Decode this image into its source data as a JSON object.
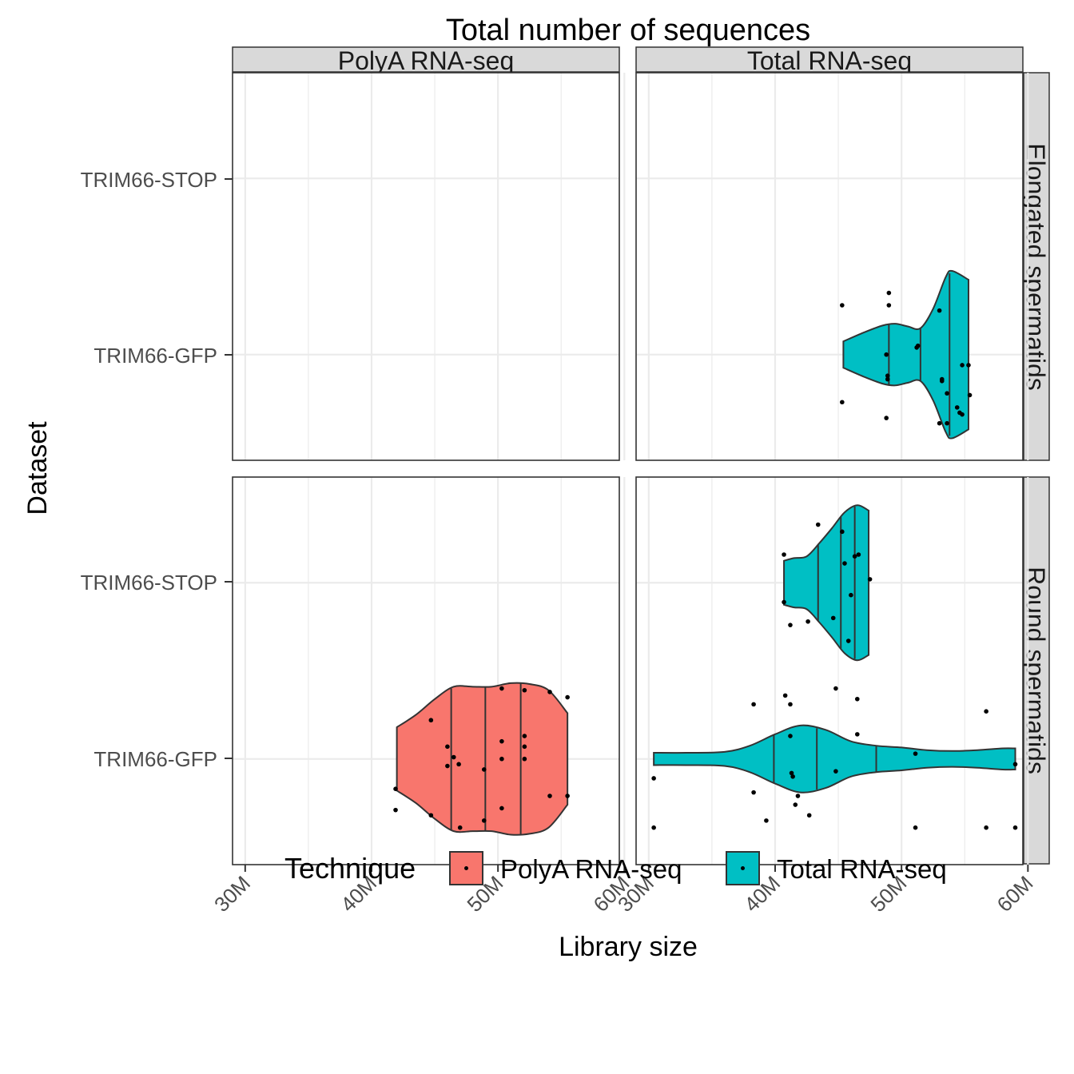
{
  "chart_data": {
    "type": "violin",
    "title": "Total number of sequences",
    "xlabel": "Library size",
    "ylabel": "Dataset",
    "x_ticks": [
      30,
      40,
      50,
      60
    ],
    "x_tick_labels": [
      "30M",
      "40M",
      "50M",
      "60M"
    ],
    "xlim": [
      29,
      59.6
    ],
    "y_categories": [
      "TRIM66-GFP",
      "TRIM66-STOP"
    ],
    "col_facets": [
      "PolyA RNA-seq",
      "Total RNA-seq"
    ],
    "row_facets": [
      "Elongated spermatids",
      "Round spermatids"
    ],
    "legend": {
      "title": "Technique",
      "position": "bottom",
      "entries": [
        {
          "label": "PolyA RNA-seq",
          "color": "#F8766D"
        },
        {
          "label": "Total RNA-seq",
          "color": "#00BFC4"
        }
      ]
    },
    "grid": true,
    "panels": [
      {
        "col": "Total RNA-seq",
        "row": "Elongated spermatids",
        "category": "TRIM66-GFP",
        "technique": "Total RNA-seq",
        "color": "#00BFC4",
        "violin_y": [
          45.4,
          47.0,
          48.5,
          49.5,
          50.5,
          51.5,
          52.5,
          53.5,
          54.0,
          55.3
        ],
        "violin_width": [
          0.15,
          0.25,
          0.33,
          0.35,
          0.32,
          0.3,
          0.52,
          0.88,
          0.95,
          0.85
        ],
        "quantiles": [
          49.0,
          51.5,
          53.8
        ],
        "points": [
          [
            45.3,
            0.28
          ],
          [
            49.0,
            0.35
          ],
          [
            49.0,
            0.28
          ],
          [
            45.3,
            -0.27
          ],
          [
            48.8,
            -0.36
          ],
          [
            48.8,
            0.0
          ],
          [
            48.9,
            -0.12
          ],
          [
            48.9,
            -0.14
          ],
          [
            51.2,
            0.04
          ],
          [
            51.3,
            0.05
          ],
          [
            53.0,
            0.25
          ],
          [
            53.2,
            -0.14
          ],
          [
            53.2,
            -0.15
          ],
          [
            53.6,
            -0.22
          ],
          [
            54.4,
            -0.3
          ],
          [
            54.6,
            -0.33
          ],
          [
            54.8,
            -0.34
          ],
          [
            54.8,
            -0.06
          ],
          [
            55.3,
            -0.06
          ],
          [
            55.4,
            -0.23
          ],
          [
            53.0,
            -0.39
          ],
          [
            53.6,
            -0.39
          ]
        ]
      },
      {
        "col": "PolyA RNA-seq",
        "row": "Round spermatids",
        "category": "TRIM66-GFP",
        "technique": "PolyA RNA-seq",
        "color": "#F8766D",
        "violin_y": [
          42.0,
          43.5,
          45.0,
          46.5,
          48.0,
          49.5,
          51.0,
          52.5,
          54.0,
          55.5
        ],
        "violin_width": [
          0.36,
          0.5,
          0.68,
          0.82,
          0.82,
          0.82,
          0.86,
          0.85,
          0.78,
          0.52
        ],
        "quantiles": [
          46.3,
          49.0,
          51.8
        ],
        "points": [
          [
            41.9,
            -0.17
          ],
          [
            41.9,
            -0.29
          ],
          [
            44.7,
            0.22
          ],
          [
            44.7,
            -0.32
          ],
          [
            46.0,
            0.07
          ],
          [
            46.0,
            -0.04
          ],
          [
            46.5,
            0.01
          ],
          [
            46.9,
            -0.03
          ],
          [
            47.0,
            -0.39
          ],
          [
            48.9,
            -0.06
          ],
          [
            48.9,
            -0.35
          ],
          [
            50.3,
            0.4
          ],
          [
            50.3,
            0.1
          ],
          [
            50.3,
            0.0
          ],
          [
            50.3,
            -0.28
          ],
          [
            52.1,
            0.39
          ],
          [
            52.1,
            0.13
          ],
          [
            52.1,
            0.07
          ],
          [
            52.1,
            0.0
          ],
          [
            54.1,
            0.38
          ],
          [
            54.1,
            -0.21
          ],
          [
            55.5,
            0.35
          ],
          [
            55.5,
            -0.21
          ]
        ]
      },
      {
        "col": "Total RNA-seq",
        "row": "Round spermatids",
        "category": "TRIM66-STOP",
        "technique": "Total RNA-seq",
        "color": "#00BFC4",
        "violin_y": [
          40.7,
          41.5,
          42.5,
          43.5,
          44.5,
          45.5,
          46.5,
          47.4
        ],
        "violin_width": [
          0.25,
          0.28,
          0.3,
          0.45,
          0.62,
          0.8,
          0.88,
          0.82
        ],
        "quantiles": [
          43.4,
          45.2,
          46.3
        ],
        "points": [
          [
            40.7,
            0.16
          ],
          [
            40.7,
            -0.11
          ],
          [
            41.2,
            -0.24
          ],
          [
            42.6,
            -0.22
          ],
          [
            43.4,
            0.33
          ],
          [
            44.6,
            -0.2
          ],
          [
            45.3,
            0.29
          ],
          [
            45.5,
            0.11
          ],
          [
            45.8,
            -0.33
          ],
          [
            46.0,
            -0.07
          ],
          [
            46.3,
            0.15
          ],
          [
            46.6,
            0.16
          ],
          [
            47.5,
            0.02
          ]
        ]
      },
      {
        "col": "Total RNA-seq",
        "row": "Round spermatids",
        "category": "TRIM66-GFP",
        "technique": "Total RNA-seq",
        "color": "#00BFC4",
        "violin_y": [
          30.4,
          33.0,
          36.0,
          38.0,
          40.0,
          42.0,
          44.0,
          46.0,
          48.0,
          50.0,
          52.0,
          54.0,
          56.0,
          58.0,
          59.0
        ],
        "violin_width": [
          0.07,
          0.07,
          0.08,
          0.15,
          0.28,
          0.38,
          0.33,
          0.2,
          0.15,
          0.13,
          0.1,
          0.09,
          0.1,
          0.12,
          0.12
        ],
        "quantiles": [
          39.9,
          43.3,
          48.0
        ],
        "points": [
          [
            30.4,
            -0.11
          ],
          [
            30.4,
            -0.39
          ],
          [
            38.3,
            0.31
          ],
          [
            38.3,
            -0.19
          ],
          [
            39.3,
            -0.35
          ],
          [
            40.8,
            0.36
          ],
          [
            41.2,
            0.31
          ],
          [
            41.2,
            0.13
          ],
          [
            41.3,
            -0.08
          ],
          [
            41.4,
            -0.1
          ],
          [
            41.6,
            -0.26
          ],
          [
            41.8,
            -0.21
          ],
          [
            42.7,
            -0.32
          ],
          [
            44.8,
            -0.07
          ],
          [
            44.8,
            0.4
          ],
          [
            46.5,
            0.34
          ],
          [
            46.5,
            0.14
          ],
          [
            51.1,
            0.03
          ],
          [
            51.1,
            -0.39
          ],
          [
            56.7,
            0.27
          ],
          [
            56.7,
            -0.39
          ],
          [
            59.0,
            -0.03
          ],
          [
            59.0,
            -0.39
          ]
        ]
      }
    ]
  }
}
